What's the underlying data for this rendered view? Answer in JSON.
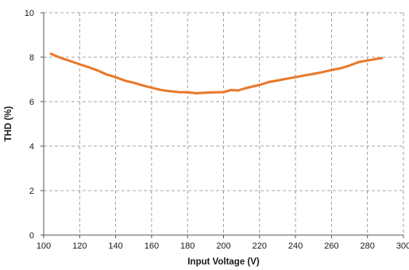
{
  "chart_data": {
    "type": "line",
    "xlabel": "Input Voltage (V)",
    "ylabel": "THD (%)",
    "xlim": [
      100,
      300
    ],
    "ylim": [
      0,
      10
    ],
    "x_ticks": [
      100,
      120,
      140,
      160,
      180,
      200,
      220,
      240,
      260,
      280,
      300
    ],
    "y_ticks": [
      0,
      2,
      4,
      6,
      8,
      10
    ],
    "grid": "dashed",
    "line_color": "#E8782A",
    "series": [
      {
        "x": [
          104,
          110,
          115,
          120,
          125,
          130,
          135,
          140,
          145,
          150,
          155,
          160,
          165,
          170,
          175,
          180,
          185,
          190,
          195,
          200,
          204,
          208,
          212,
          216,
          220,
          225,
          230,
          235,
          240,
          245,
          250,
          255,
          260,
          265,
          270,
          275,
          280,
          285,
          288
        ],
        "y": [
          8.15,
          7.95,
          7.82,
          7.68,
          7.55,
          7.4,
          7.22,
          7.1,
          6.95,
          6.85,
          6.73,
          6.63,
          6.53,
          6.47,
          6.43,
          6.42,
          6.38,
          6.4,
          6.42,
          6.43,
          6.52,
          6.5,
          6.6,
          6.68,
          6.75,
          6.88,
          6.95,
          7.03,
          7.1,
          7.18,
          7.25,
          7.33,
          7.42,
          7.5,
          7.62,
          7.78,
          7.85,
          7.92,
          7.96
        ]
      }
    ]
  }
}
